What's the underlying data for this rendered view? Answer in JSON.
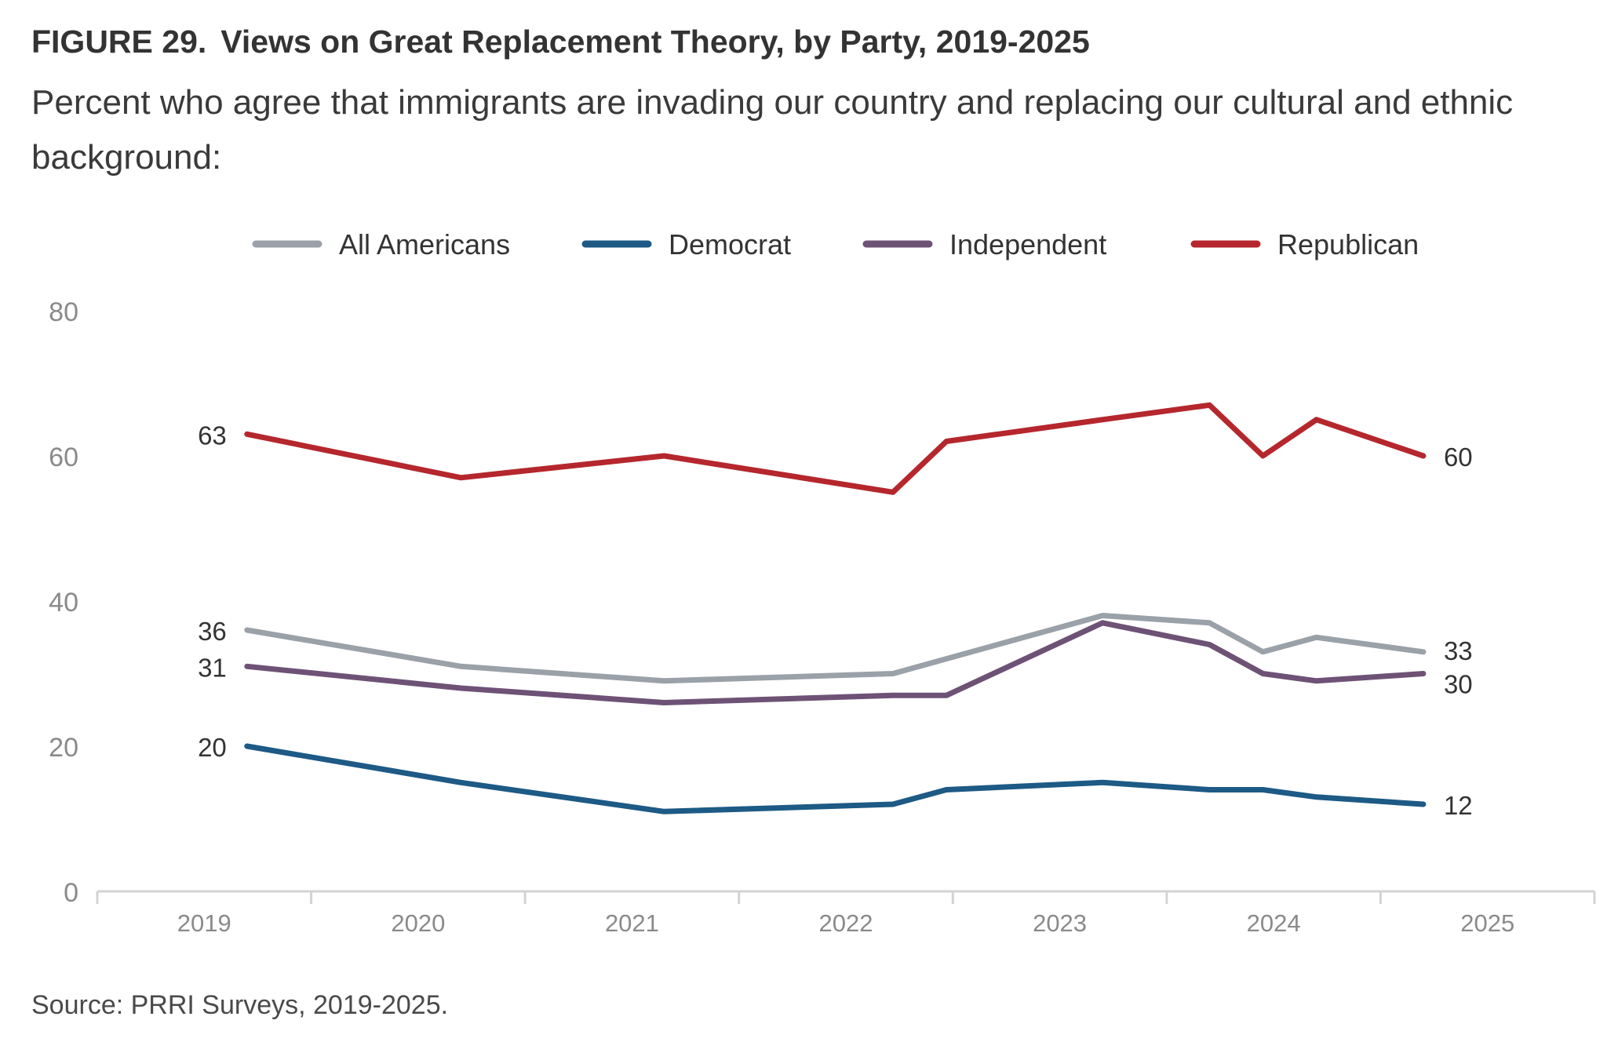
{
  "figure": {
    "label": "FIGURE 29.",
    "title": "Views on Great Replacement Theory, by Party, 2019-2025",
    "subtitle": "Percent who agree that immigrants are invading our country and replacing our cultural and ethnic background:",
    "source": "Source: PRRI Surveys, 2019-2025."
  },
  "chart_data": {
    "type": "line",
    "title": "Views on Great Replacement Theory, by Party, 2019-2025",
    "xlabel": "",
    "ylabel": "",
    "ylim": [
      0,
      80
    ],
    "y_ticks": [
      0,
      20,
      40,
      60,
      80
    ],
    "x_range": [
      2019,
      2026
    ],
    "x_ticks": [
      2019,
      2020,
      2021,
      2022,
      2023,
      2024,
      2025
    ],
    "grid": false,
    "legend_position": "top",
    "x": [
      2019.7,
      2020.7,
      2021.65,
      2022.72,
      2022.97,
      2023.7,
      2024.2,
      2024.45,
      2024.7,
      2025.2
    ],
    "series": [
      {
        "name": "All Americans",
        "color": "#9aa1a8",
        "values": [
          36,
          31,
          29,
          30,
          null,
          38,
          37,
          33,
          35,
          33
        ],
        "start_label": "36",
        "end_label": "33"
      },
      {
        "name": "Democrat",
        "color": "#1d5a85",
        "values": [
          20,
          15,
          11,
          12,
          14,
          15,
          14,
          14,
          13,
          12
        ],
        "start_label": "20",
        "end_label": "12"
      },
      {
        "name": "Independent",
        "color": "#6e5276",
        "values": [
          31,
          28,
          26,
          27,
          27,
          37,
          34,
          30,
          29,
          30
        ],
        "start_label": "31",
        "end_label": "30"
      },
      {
        "name": "Republican",
        "color": "#b5272d",
        "values": [
          63,
          57,
          60,
          55,
          62,
          65,
          67,
          60,
          65,
          60
        ],
        "start_label": "63",
        "end_label": "60"
      }
    ]
  }
}
